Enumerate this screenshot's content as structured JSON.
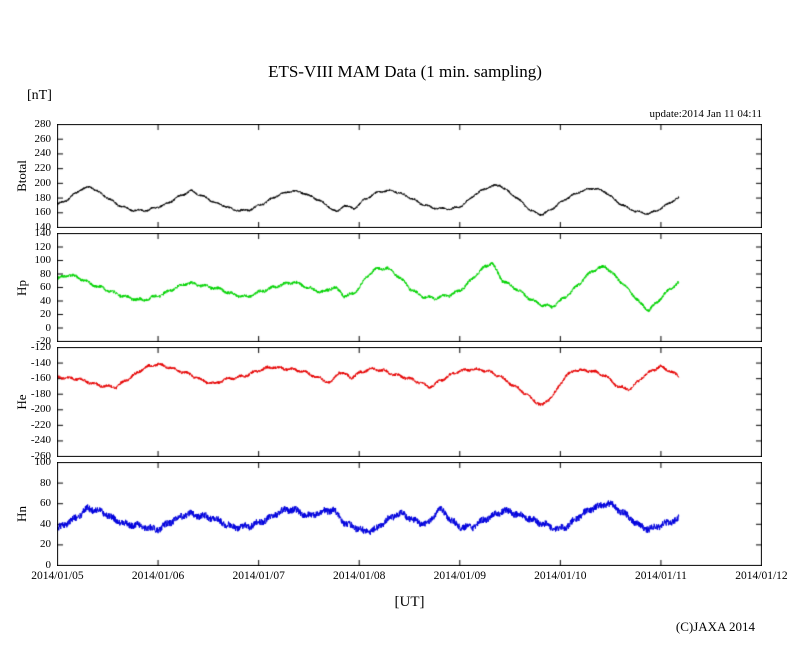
{
  "labels": {
    "unit": "[nT]",
    "update": "update:2014 Jan 11 04:11",
    "x_axis": "[UT]",
    "copyright": "(C)JAXA 2014"
  },
  "chart_data": {
    "type": "line",
    "title": "ETS-VIII MAM Data (1 min. sampling)",
    "xlabel": "[UT]",
    "ylabel": "[nT]",
    "x_tick_labels": [
      "2014/01/05",
      "2014/01/06",
      "2014/01/07",
      "2014/01/08",
      "2014/01/09",
      "2014/01/10",
      "2014/01/11",
      "2014/01/12"
    ],
    "x_range_days": [
      0,
      7
    ],
    "data_end_day": 6.18,
    "grid": false,
    "legend": "none",
    "panels": [
      {
        "name": "Btotal",
        "color": "#000000",
        "ylim": [
          140,
          280
        ],
        "ytick_step": 20,
        "noise_amp": 1.3,
        "wobble_amp": 1.6,
        "points": [
          [
            0.0,
            172
          ],
          [
            0.1,
            178
          ],
          [
            0.22,
            190
          ],
          [
            0.33,
            196
          ],
          [
            0.45,
            185
          ],
          [
            0.6,
            170
          ],
          [
            0.75,
            164
          ],
          [
            0.9,
            163
          ],
          [
            1.05,
            170
          ],
          [
            1.2,
            182
          ],
          [
            1.33,
            189
          ],
          [
            1.45,
            183
          ],
          [
            1.6,
            172
          ],
          [
            1.75,
            164
          ],
          [
            1.9,
            164
          ],
          [
            2.05,
            172
          ],
          [
            2.2,
            185
          ],
          [
            2.33,
            190
          ],
          [
            2.45,
            186
          ],
          [
            2.6,
            178
          ],
          [
            2.7,
            168
          ],
          [
            2.78,
            160
          ],
          [
            2.85,
            170
          ],
          [
            2.95,
            166
          ],
          [
            3.05,
            178
          ],
          [
            3.2,
            188
          ],
          [
            3.33,
            191
          ],
          [
            3.45,
            184
          ],
          [
            3.6,
            173
          ],
          [
            3.75,
            167
          ],
          [
            3.9,
            164
          ],
          [
            4.0,
            168
          ],
          [
            4.15,
            185
          ],
          [
            4.3,
            195
          ],
          [
            4.4,
            198
          ],
          [
            4.55,
            182
          ],
          [
            4.7,
            163
          ],
          [
            4.82,
            158
          ],
          [
            4.95,
            168
          ],
          [
            5.05,
            178
          ],
          [
            5.2,
            190
          ],
          [
            5.33,
            193
          ],
          [
            5.45,
            188
          ],
          [
            5.6,
            172
          ],
          [
            5.75,
            161
          ],
          [
            5.88,
            159
          ],
          [
            6.0,
            166
          ],
          [
            6.1,
            174
          ],
          [
            6.18,
            180
          ]
        ]
      },
      {
        "name": "Hp",
        "color": "#00d300",
        "ylim": [
          -20,
          140
        ],
        "ytick_step": 20,
        "noise_amp": 2.2,
        "wobble_amp": 2.4,
        "points": [
          [
            0.0,
            74
          ],
          [
            0.12,
            78
          ],
          [
            0.25,
            72
          ],
          [
            0.4,
            62
          ],
          [
            0.55,
            52
          ],
          [
            0.7,
            46
          ],
          [
            0.85,
            40
          ],
          [
            1.0,
            48
          ],
          [
            1.15,
            58
          ],
          [
            1.3,
            66
          ],
          [
            1.45,
            64
          ],
          [
            1.6,
            57
          ],
          [
            1.75,
            50
          ],
          [
            1.9,
            46
          ],
          [
            2.05,
            55
          ],
          [
            2.2,
            64
          ],
          [
            2.35,
            67
          ],
          [
            2.5,
            60
          ],
          [
            2.65,
            53
          ],
          [
            2.75,
            60
          ],
          [
            2.85,
            48
          ],
          [
            2.95,
            52
          ],
          [
            3.05,
            70
          ],
          [
            3.15,
            86
          ],
          [
            3.28,
            90
          ],
          [
            3.4,
            75
          ],
          [
            3.5,
            58
          ],
          [
            3.62,
            48
          ],
          [
            3.75,
            44
          ],
          [
            3.9,
            48
          ],
          [
            4.0,
            56
          ],
          [
            4.12,
            72
          ],
          [
            4.25,
            90
          ],
          [
            4.32,
            97
          ],
          [
            4.42,
            72
          ],
          [
            4.55,
            58
          ],
          [
            4.68,
            45
          ],
          [
            4.8,
            36
          ],
          [
            4.92,
            30
          ],
          [
            5.05,
            46
          ],
          [
            5.2,
            68
          ],
          [
            5.32,
            84
          ],
          [
            5.45,
            92
          ],
          [
            5.58,
            72
          ],
          [
            5.7,
            52
          ],
          [
            5.8,
            36
          ],
          [
            5.88,
            27
          ],
          [
            6.0,
            44
          ],
          [
            6.1,
            58
          ],
          [
            6.18,
            68
          ]
        ]
      },
      {
        "name": "He",
        "color": "#e60000",
        "ylim": [
          -260,
          -120
        ],
        "ytick_step": 20,
        "noise_amp": 1.8,
        "wobble_amp": 2.0,
        "points": [
          [
            0.0,
            -157
          ],
          [
            0.15,
            -160
          ],
          [
            0.3,
            -164
          ],
          [
            0.45,
            -169
          ],
          [
            0.58,
            -172
          ],
          [
            0.7,
            -160
          ],
          [
            0.85,
            -147
          ],
          [
            1.0,
            -142
          ],
          [
            1.12,
            -145
          ],
          [
            1.25,
            -152
          ],
          [
            1.4,
            -160
          ],
          [
            1.55,
            -166
          ],
          [
            1.7,
            -161
          ],
          [
            1.85,
            -156
          ],
          [
            2.0,
            -150
          ],
          [
            2.15,
            -145
          ],
          [
            2.3,
            -147
          ],
          [
            2.45,
            -152
          ],
          [
            2.6,
            -158
          ],
          [
            2.72,
            -166
          ],
          [
            2.8,
            -152
          ],
          [
            2.92,
            -158
          ],
          [
            3.0,
            -152
          ],
          [
            3.1,
            -148
          ],
          [
            3.25,
            -150
          ],
          [
            3.4,
            -156
          ],
          [
            3.55,
            -163
          ],
          [
            3.7,
            -170
          ],
          [
            3.85,
            -160
          ],
          [
            4.0,
            -150
          ],
          [
            4.12,
            -147
          ],
          [
            4.28,
            -151
          ],
          [
            4.42,
            -158
          ],
          [
            4.55,
            -170
          ],
          [
            4.7,
            -185
          ],
          [
            4.82,
            -194
          ],
          [
            4.95,
            -178
          ],
          [
            5.05,
            -158
          ],
          [
            5.15,
            -148
          ],
          [
            5.3,
            -150
          ],
          [
            5.45,
            -157
          ],
          [
            5.58,
            -170
          ],
          [
            5.7,
            -174
          ],
          [
            5.82,
            -158
          ],
          [
            5.92,
            -148
          ],
          [
            6.0,
            -144
          ],
          [
            6.1,
            -152
          ],
          [
            6.18,
            -158
          ]
        ]
      },
      {
        "name": "Hn",
        "color": "#0000dd",
        "ylim": [
          0,
          100
        ],
        "ytick_step": 20,
        "noise_amp": 3.2,
        "wobble_amp": 2.0,
        "points": [
          [
            0.0,
            35
          ],
          [
            0.15,
            44
          ],
          [
            0.3,
            56
          ],
          [
            0.42,
            52
          ],
          [
            0.55,
            46
          ],
          [
            0.7,
            40
          ],
          [
            0.85,
            37
          ],
          [
            1.0,
            36
          ],
          [
            1.15,
            43
          ],
          [
            1.3,
            51
          ],
          [
            1.45,
            48
          ],
          [
            1.6,
            43
          ],
          [
            1.75,
            38
          ],
          [
            1.9,
            37
          ],
          [
            2.05,
            44
          ],
          [
            2.2,
            52
          ],
          [
            2.35,
            54
          ],
          [
            2.5,
            49
          ],
          [
            2.62,
            51
          ],
          [
            2.75,
            54
          ],
          [
            2.85,
            42
          ],
          [
            2.95,
            37
          ],
          [
            3.05,
            32
          ],
          [
            3.15,
            35
          ],
          [
            3.3,
            46
          ],
          [
            3.42,
            50
          ],
          [
            3.55,
            44
          ],
          [
            3.68,
            40
          ],
          [
            3.8,
            55
          ],
          [
            3.9,
            46
          ],
          [
            4.0,
            38
          ],
          [
            4.12,
            36
          ],
          [
            4.28,
            47
          ],
          [
            4.42,
            53
          ],
          [
            4.55,
            50
          ],
          [
            4.7,
            46
          ],
          [
            4.85,
            39
          ],
          [
            4.95,
            35
          ],
          [
            5.05,
            38
          ],
          [
            5.2,
            48
          ],
          [
            5.35,
            57
          ],
          [
            5.48,
            61
          ],
          [
            5.6,
            52
          ],
          [
            5.75,
            42
          ],
          [
            5.88,
            35
          ],
          [
            6.0,
            38
          ],
          [
            6.1,
            43
          ],
          [
            6.18,
            46
          ]
        ]
      }
    ]
  }
}
